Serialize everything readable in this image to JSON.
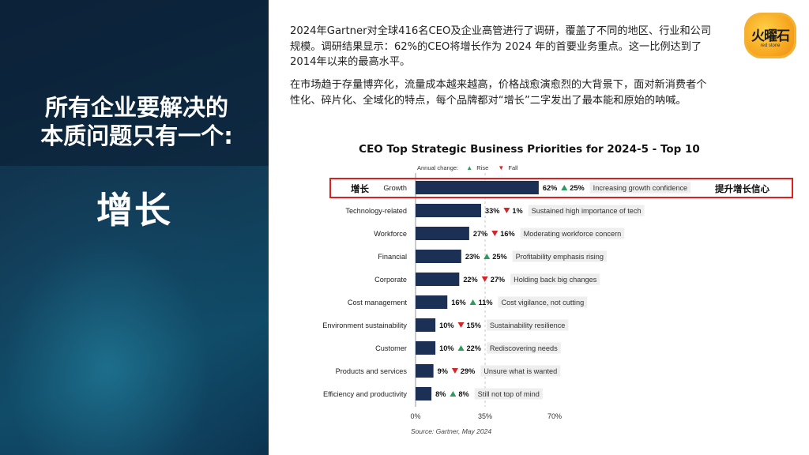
{
  "left": {
    "headline_line1": "所有企业要解决的",
    "headline_line2": "本质问题只有一个:",
    "keyword": "增长"
  },
  "paragraphs": [
    "2024年Gartner对全球416名CEO及企业高管进行了调研，覆盖了不同的地区、行业和公司规模。调研结果显示：62%的CEO将增长作为 2024 年的首要业务重点。这一比例达到了2014年以来的最高水平。",
    "在市场趋于存量博弈化，流量成本越来越高，价格战愈演愈烈的大背景下，面对新消费者个性化、碎片化、全域化的特点，每个品牌都对“增长”二字发出了最本能和原始的呐喊。"
  ],
  "logo": {
    "text": "火曜石",
    "subtext": "red stone"
  },
  "highlight": {
    "cn_label": "增长",
    "annotation": "提升增长信心",
    "color": "#e02020"
  },
  "colors": {
    "bar": "#1c2f55",
    "up": "#2a9d5c",
    "down": "#d32626"
  },
  "chart_data": {
    "type": "bar",
    "orientation": "horizontal",
    "title": "CEO Top Strategic Business Priorities for 2024-5 - Top 10",
    "legend": {
      "label": "Annual change:",
      "rise": "Rise",
      "fall": "Fall",
      "placement": "top"
    },
    "xlim": [
      0,
      70
    ],
    "xticks": [
      "0%",
      "35%",
      "70%"
    ],
    "categories": [
      "Growth",
      "Technology-related",
      "Workforce",
      "Financial",
      "Corporate",
      "Cost management",
      "Environment sustainability",
      "Customer",
      "Products and services",
      "Efficiency and productivity"
    ],
    "values": [
      62,
      33,
      27,
      23,
      22,
      16,
      10,
      10,
      9,
      8
    ],
    "value_labels": [
      "62%",
      "33%",
      "27%",
      "23%",
      "22%",
      "16%",
      "10%",
      "10%",
      "9%",
      "8%"
    ],
    "change_direction": [
      "up",
      "down",
      "down",
      "up",
      "down",
      "up",
      "down",
      "up",
      "down",
      "up"
    ],
    "change_labels": [
      "25%",
      "1%",
      "16%",
      "25%",
      "27%",
      "11%",
      "15%",
      "22%",
      "29%",
      "8%"
    ],
    "notes": [
      "Increasing growth confidence",
      "Sustained high importance of tech",
      "Moderating workforce concern",
      "Profitability emphasis rising",
      "Holding back big changes",
      "Cost vigilance, not cutting",
      "Sustainability resilience",
      "Rediscovering needs",
      "Unsure what is wanted",
      "Still not top of mind"
    ],
    "source": "Source: Gartner, May 2024"
  }
}
